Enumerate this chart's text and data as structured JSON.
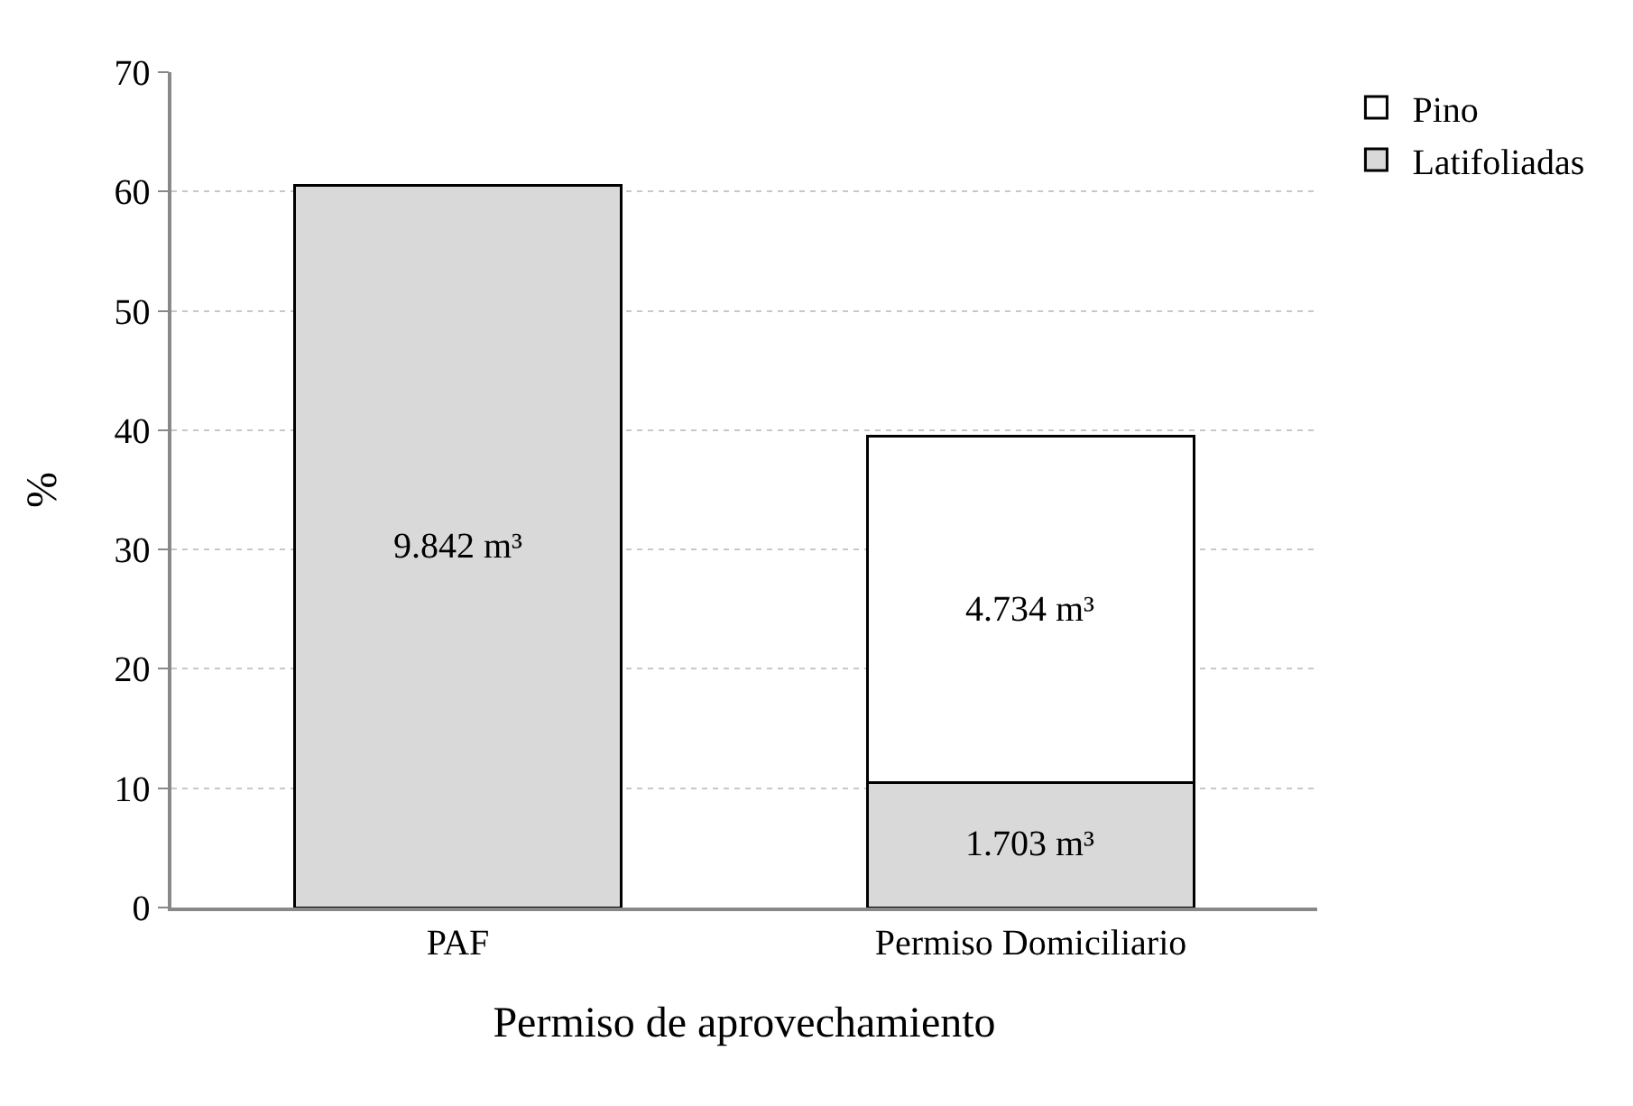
{
  "chart_data": {
    "type": "bar",
    "stacked": true,
    "xlabel": "Permiso de aprovechamiento",
    "ylabel": "%",
    "categories": [
      "PAF",
      "Permiso Domiciliario"
    ],
    "series": [
      {
        "name": "Latifoliadas",
        "color": "#d9d9d9",
        "values": [
          60.5,
          10.5
        ]
      },
      {
        "name": "Pino",
        "color": "#ffffff",
        "values": [
          null,
          29.0
        ]
      }
    ],
    "annotations": [
      "9.842 m³",
      "1.703 m³",
      "4.734 m³"
    ],
    "ylim": [
      0,
      70
    ],
    "yticks": [
      0,
      10,
      20,
      30,
      40,
      50,
      60,
      70
    ],
    "grid": "y",
    "legend": "top right"
  }
}
